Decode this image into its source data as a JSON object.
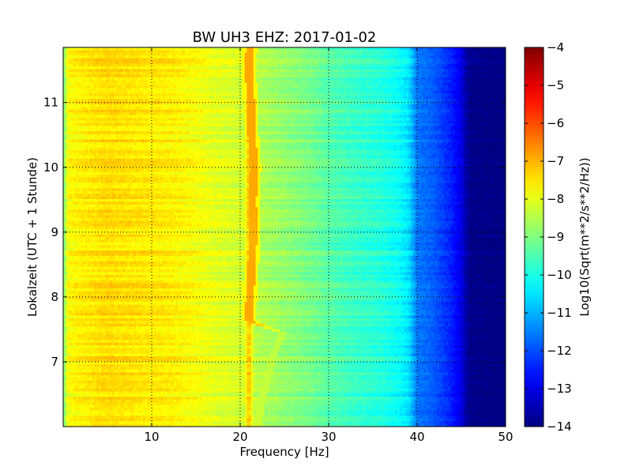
{
  "chart_data": {
    "type": "heatmap",
    "title": "BW UH3 EHZ: 2017-01-02",
    "xlabel": "Frequency [Hz]",
    "ylabel": "Lokalzeit (UTC + 1 Stunde)",
    "xlim": [
      0,
      50
    ],
    "ylim": [
      11.85,
      6.0
    ],
    "x_ticks": [
      10,
      20,
      30,
      40,
      50
    ],
    "x_tick_labels": [
      "10",
      "20",
      "30",
      "40",
      "50"
    ],
    "y_ticks": [
      7,
      8,
      9,
      10,
      11
    ],
    "y_tick_labels": [
      "7",
      "8",
      "9",
      "10",
      "11"
    ],
    "grid": true,
    "colormap": "jet",
    "colorbar": {
      "label": "Log10(Sqrt(m**2/s**2/Hz))",
      "vmin": -14,
      "vmax": -4,
      "ticks": [
        -4,
        -5,
        -6,
        -7,
        -8,
        -9,
        -10,
        -11,
        -12,
        -13,
        -14
      ],
      "tick_labels": [
        "−4",
        "−5",
        "−6",
        "−7",
        "−8",
        "−9",
        "−10",
        "−11",
        "−12",
        "−13",
        "−14"
      ]
    },
    "spectrum_profile": {
      "frequency_hz": [
        0,
        0.5,
        1,
        2,
        5,
        8,
        12,
        15,
        17,
        19,
        20.5,
        21,
        21.5,
        22,
        24,
        26,
        28,
        30,
        33,
        36,
        38,
        39,
        39.5,
        40,
        41,
        42,
        43,
        44,
        45,
        45.5,
        46,
        50
      ],
      "log_amplitude": [
        -9.2,
        -7.8,
        -7.7,
        -7.6,
        -7.4,
        -7.5,
        -7.6,
        -7.8,
        -8.0,
        -8.1,
        -8.2,
        -7.0,
        -8.3,
        -8.5,
        -8.7,
        -8.9,
        -9.1,
        -9.4,
        -9.7,
        -9.9,
        -10.2,
        -10.5,
        -11.0,
        -11.6,
        -11.7,
        -11.9,
        -12.2,
        -12.5,
        -13.0,
        -13.6,
        -13.9,
        -14.0
      ]
    },
    "spectral_line": {
      "times_h": [
        6.0,
        6.3,
        6.6,
        6.9,
        7.2,
        7.45,
        7.6,
        7.65,
        8.0,
        8.5,
        9.0,
        9.5,
        10.0,
        10.5,
        11.0,
        11.5,
        11.85
      ],
      "frequency_hz": [
        22.0,
        22.3,
        22.8,
        23.4,
        24.0,
        24.8,
        21.5,
        21.0,
        21.1,
        21.3,
        21.5,
        21.4,
        21.6,
        21.3,
        21.2,
        21.0,
        21.1
      ],
      "log_amplitude": [
        -8.2,
        -8.3,
        -8.3,
        -8.4,
        -8.4,
        -8.4,
        -7.0,
        -6.9,
        -6.9,
        -6.9,
        -7.0,
        -6.9,
        -6.9,
        -6.9,
        -6.9,
        -6.9,
        -6.9
      ]
    }
  }
}
